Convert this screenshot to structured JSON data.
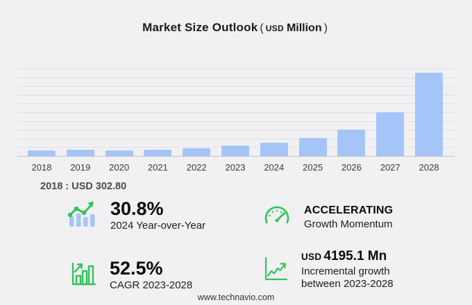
{
  "title": {
    "main": "Market Size Outlook",
    "paren_open": "(",
    "currency": "USD",
    "unit": "Million",
    "paren_close": ")"
  },
  "chart_data": {
    "type": "bar",
    "title": "Market Size Outlook (USD Million)",
    "categories": [
      "2018",
      "2019",
      "2020",
      "2021",
      "2022",
      "2023",
      "2024",
      "2025",
      "2026",
      "2027",
      "2028"
    ],
    "values": [
      302.8,
      352,
      328,
      371,
      452,
      578.8,
      757.1,
      1030,
      1520,
      2520,
      4773.9
    ],
    "xlabel": "",
    "ylabel": "",
    "ylim": [
      0,
      5000
    ],
    "gridline_step": 500,
    "grid": "horizontal",
    "legend": "none",
    "bar_color": "#a5c5f8",
    "annotation": "2018 : USD 302.80"
  },
  "annotation": {
    "label": "2018 : USD 302.80"
  },
  "stats": [
    {
      "icon": "bar-chart-trend-icon",
      "value": "30.8%",
      "label": "2024 Year-over-Year"
    },
    {
      "icon": "speedometer-icon",
      "value": "ACCELERATING",
      "label": "Growth Momentum"
    },
    {
      "icon": "growth-bars-icon",
      "value": "52.5%",
      "label": "CAGR 2023-2028"
    },
    {
      "icon": "line-chart-icon",
      "currency": "USD",
      "value": "4195.1 Mn",
      "label_line1": "Incremental growth",
      "label_line2": "between 2023-2028"
    }
  ],
  "footer": {
    "url": "www.technavio.com"
  },
  "colors": {
    "background": "#f1f1f3",
    "bar_blue": "#a5c5f8",
    "icon_green": "#33c356",
    "gridline": "#dfdfe1",
    "axis": "#c3c3c6",
    "title_text": "#1b1b1b",
    "annotation_text": "#4b4b4b"
  }
}
